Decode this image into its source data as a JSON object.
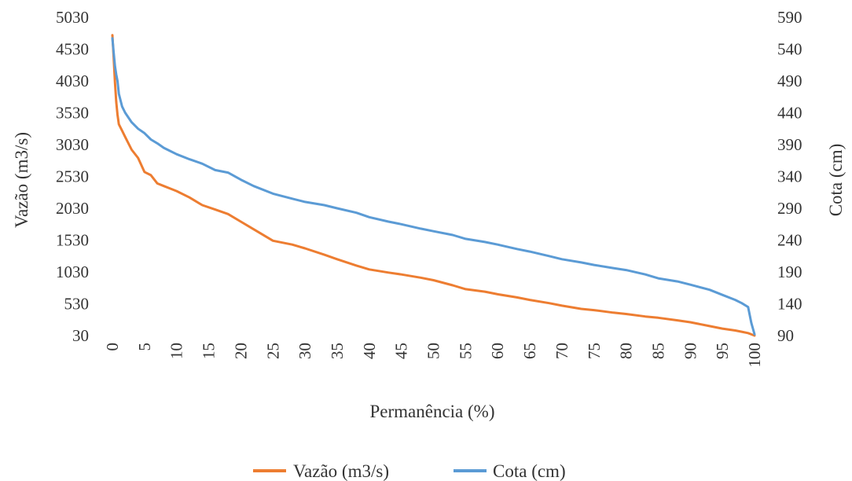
{
  "chart_data": {
    "type": "line",
    "title": "",
    "xlabel": "Permanência (%)",
    "ylabel_left": "Vazão (m3/s)",
    "ylabel_right": "Cota (cm)",
    "x_ticks": [
      "0",
      "5",
      "10",
      "15",
      "20",
      "25",
      "30",
      "35",
      "40",
      "45",
      "50",
      "55",
      "60",
      "65",
      "70",
      "75",
      "80",
      "85",
      "90",
      "95",
      "100"
    ],
    "y_left_ticks": [
      "30",
      "530",
      "1030",
      "1530",
      "2030",
      "2530",
      "3030",
      "3530",
      "4030",
      "4530",
      "5030"
    ],
    "y_right_ticks": [
      "90",
      "140",
      "190",
      "240",
      "290",
      "340",
      "390",
      "440",
      "490",
      "540",
      "590"
    ],
    "xlim": [
      0,
      100
    ],
    "ylim_left": [
      30,
      5030
    ],
    "ylim_right": [
      90,
      590
    ],
    "grid": false,
    "legend_position": "bottom",
    "series": [
      {
        "name": "Vazão (m3/s)",
        "axis": "left",
        "color": "#ED7D31",
        "x": [
          0,
          0.2,
          0.4,
          0.6,
          0.8,
          1,
          1.5,
          2,
          3,
          4,
          5,
          6,
          7,
          8,
          9,
          10,
          12,
          14,
          16,
          18,
          20,
          22,
          25,
          28,
          30,
          33,
          35,
          38,
          40,
          43,
          45,
          48,
          50,
          53,
          55,
          58,
          60,
          63,
          65,
          68,
          70,
          73,
          75,
          78,
          80,
          83,
          85,
          88,
          90,
          93,
          95,
          97,
          98,
          99,
          99.5,
          100
        ],
        "y": [
          4750,
          4400,
          4000,
          3700,
          3500,
          3350,
          3250,
          3150,
          2950,
          2820,
          2600,
          2550,
          2420,
          2380,
          2340,
          2300,
          2200,
          2080,
          2010,
          1940,
          1820,
          1700,
          1520,
          1460,
          1400,
          1300,
          1230,
          1130,
          1070,
          1020,
          990,
          940,
          900,
          820,
          760,
          720,
          680,
          630,
          590,
          540,
          500,
          450,
          430,
          390,
          370,
          330,
          310,
          270,
          240,
          180,
          140,
          110,
          90,
          70,
          50,
          30
        ]
      },
      {
        "name": "Cota (cm)",
        "axis": "right",
        "color": "#5B9BD5",
        "x": [
          0,
          0.2,
          0.4,
          0.6,
          0.8,
          1,
          1.5,
          2,
          3,
          4,
          5,
          6,
          7,
          8,
          9,
          10,
          12,
          14,
          16,
          18,
          20,
          22,
          25,
          28,
          30,
          33,
          35,
          38,
          40,
          43,
          45,
          48,
          50,
          53,
          55,
          58,
          60,
          63,
          65,
          68,
          70,
          73,
          75,
          78,
          80,
          83,
          85,
          88,
          90,
          93,
          95,
          97,
          98,
          99,
          99.5,
          100
        ],
        "y": [
          557,
          535,
          513,
          500,
          490,
          470,
          450,
          440,
          425,
          415,
          408,
          398,
          392,
          385,
          380,
          375,
          367,
          360,
          350,
          346,
          335,
          325,
          313,
          305,
          300,
          295,
          290,
          283,
          276,
          269,
          265,
          258,
          254,
          248,
          242,
          237,
          233,
          226,
          222,
          215,
          210,
          205,
          201,
          196,
          193,
          186,
          180,
          175,
          170,
          162,
          154,
          146,
          141,
          135,
          110,
          92
        ]
      }
    ]
  }
}
